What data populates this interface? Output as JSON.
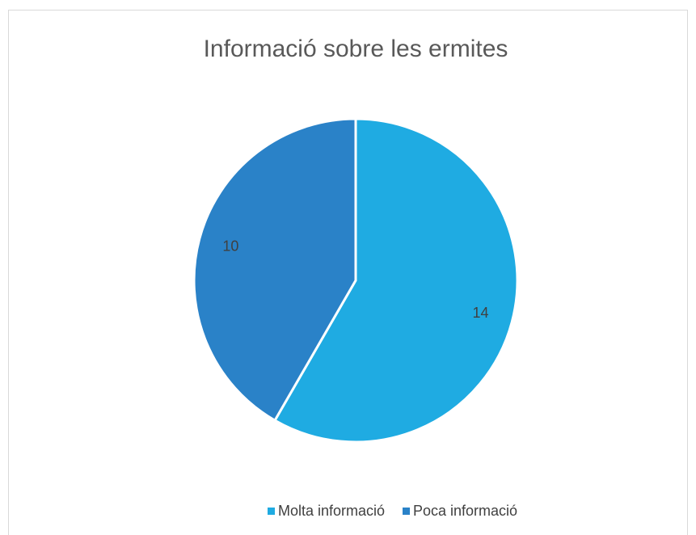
{
  "chart_data": {
    "type": "pie",
    "title": "Informació sobre les ermites",
    "categories": [
      "Molta informació",
      "Poca informació"
    ],
    "values": [
      14,
      10
    ],
    "colors": [
      "#1fabe2",
      "#2a82c8"
    ],
    "legend": "bottom"
  }
}
